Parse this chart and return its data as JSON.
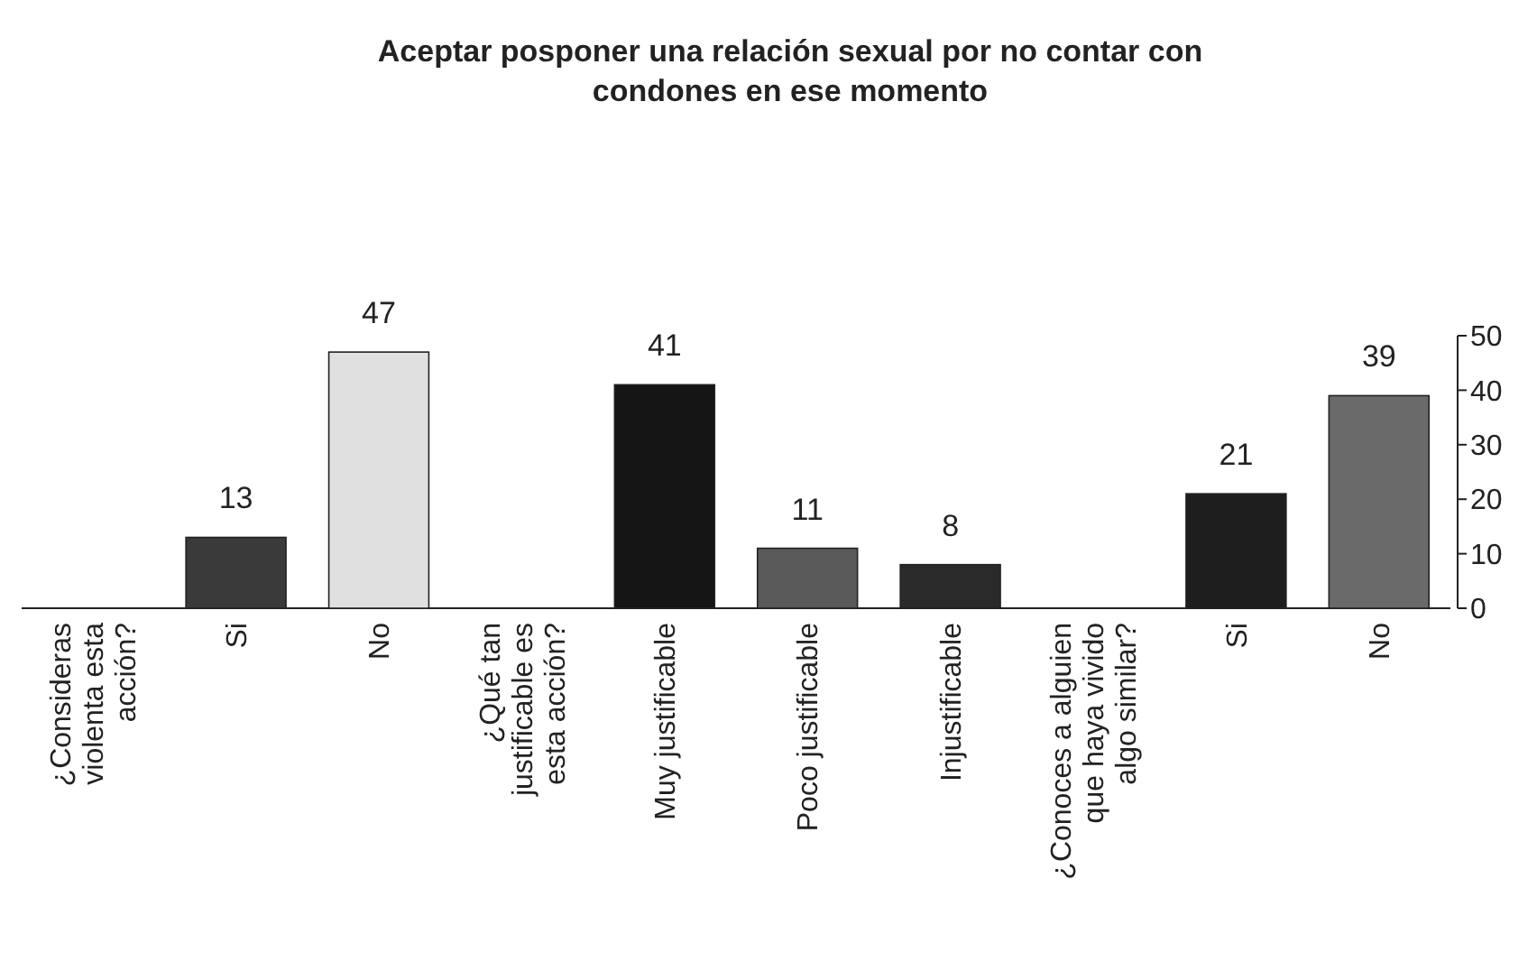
{
  "chart_data": {
    "type": "bar",
    "title": "Aceptar posponer una relación sexual por no contar con condones en ese momento",
    "categories": [
      "¿Consideras violenta esta acción?",
      "Si",
      "No",
      "¿Qué tan justificable es esta acción?",
      "Muy justificable",
      "Poco justificable",
      "Injustificable",
      "¿Conoces a alguien que haya vivido algo similar?",
      "Si",
      "No"
    ],
    "values": [
      null,
      13,
      47,
      null,
      41,
      11,
      8,
      null,
      21,
      39
    ],
    "colors": [
      null,
      "#3a3a3a",
      "#e0e0e0",
      null,
      "#151515",
      "#5a5a5a",
      "#2a2a2a",
      null,
      "#1e1e1e",
      "#6a6a6a"
    ],
    "ylim": [
      0,
      50
    ],
    "yticks": [
      0,
      10,
      20,
      30,
      40,
      50
    ],
    "data_labels": true,
    "grid": false
  }
}
